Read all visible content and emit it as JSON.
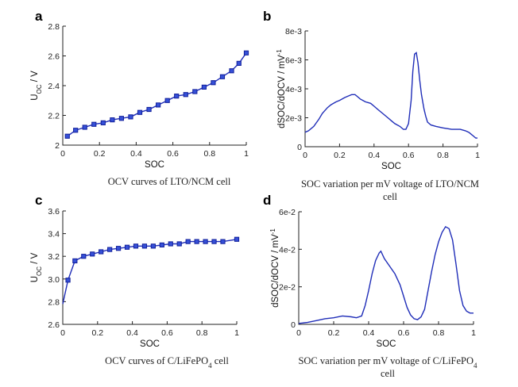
{
  "chart_data": [
    {
      "id": "a",
      "panel_label": "a",
      "type": "line",
      "markers": true,
      "caption_lines": [
        "OCV curves of LTO/NCM cell"
      ],
      "xlabel": "SOC",
      "ylabel": "U",
      "ylabel_sub": "OC",
      "ylabel_rest": " / V",
      "xlim": [
        0,
        1
      ],
      "ylim": [
        2.0,
        2.8
      ],
      "xticks": [
        0,
        0.2,
        0.4,
        0.6,
        0.8,
        1
      ],
      "xtick_labels": [
        "0",
        "0.2",
        "0.4",
        "0.6",
        "0.8",
        "1"
      ],
      "yticks": [
        2.0,
        2.2,
        2.4,
        2.6,
        2.8
      ],
      "ytick_labels": [
        "2",
        "2.2",
        "2.4",
        "2.6",
        "2.8"
      ],
      "series": [
        {
          "name": "OCV LTO/NCM",
          "x": [
            0.025,
            0.07,
            0.12,
            0.17,
            0.22,
            0.27,
            0.32,
            0.37,
            0.42,
            0.47,
            0.52,
            0.57,
            0.62,
            0.67,
            0.72,
            0.77,
            0.82,
            0.87,
            0.92,
            0.96,
            1.0
          ],
          "y": [
            2.06,
            2.1,
            2.12,
            2.14,
            2.15,
            2.17,
            2.18,
            2.19,
            2.22,
            2.24,
            2.27,
            2.3,
            2.33,
            2.34,
            2.36,
            2.39,
            2.42,
            2.46,
            2.5,
            2.55,
            2.62
          ]
        }
      ]
    },
    {
      "id": "b",
      "panel_label": "b",
      "type": "line",
      "markers": false,
      "caption_lines": [
        "SOC variation per mV voltage of LTO/NCM",
        "cell"
      ],
      "xlabel": "SOC",
      "ylabel": "dSOC/dOCV  /  mV",
      "ylabel_sup": "-1",
      "xlim": [
        0,
        1
      ],
      "ylim": [
        0,
        0.008
      ],
      "xticks": [
        0,
        0.2,
        0.4,
        0.6,
        0.8,
        1
      ],
      "xtick_labels": [
        "0",
        "0.2",
        "0.4",
        "0.6",
        "0.8",
        "1"
      ],
      "yticks": [
        0,
        0.002,
        0.004,
        0.006,
        0.008
      ],
      "ytick_labels": [
        "0",
        "2e-3",
        "4e-3",
        "6e-3",
        "8e-3"
      ],
      "series": [
        {
          "name": "dSOC/dOCV LTO/NCM",
          "x": [
            0,
            0.02,
            0.05,
            0.08,
            0.1,
            0.13,
            0.15,
            0.18,
            0.2,
            0.23,
            0.25,
            0.27,
            0.29,
            0.3,
            0.32,
            0.35,
            0.38,
            0.4,
            0.42,
            0.45,
            0.48,
            0.5,
            0.52,
            0.55,
            0.57,
            0.585,
            0.6,
            0.615,
            0.625,
            0.635,
            0.645,
            0.655,
            0.665,
            0.675,
            0.69,
            0.7,
            0.71,
            0.73,
            0.76,
            0.8,
            0.85,
            0.9,
            0.93,
            0.95,
            0.97,
            0.99,
            1.0
          ],
          "y": [
            0.001,
            0.0011,
            0.0014,
            0.0019,
            0.0023,
            0.0027,
            0.0029,
            0.0031,
            0.0032,
            0.0034,
            0.0035,
            0.0036,
            0.0036,
            0.0035,
            0.0033,
            0.0031,
            0.003,
            0.0028,
            0.0026,
            0.0023,
            0.002,
            0.0018,
            0.0016,
            0.0014,
            0.0012,
            0.0012,
            0.0016,
            0.0032,
            0.0052,
            0.0064,
            0.0065,
            0.0058,
            0.0046,
            0.0036,
            0.0026,
            0.0021,
            0.0017,
            0.0015,
            0.0014,
            0.0013,
            0.0012,
            0.0012,
            0.0011,
            0.001,
            0.0008,
            0.0006,
            0.0006
          ]
        }
      ]
    },
    {
      "id": "c",
      "panel_label": "c",
      "type": "line",
      "markers": true,
      "caption_lines": [
        "OCV curves of C/LiFePO4 cell"
      ],
      "caption_parts": [
        "OCV curves of C/LiFePO",
        "4",
        " cell"
      ],
      "xlabel": "SOC",
      "ylabel": "U",
      "ylabel_sub": "OC",
      "ylabel_rest": " / V",
      "xlim": [
        0,
        1
      ],
      "ylim": [
        2.6,
        3.6
      ],
      "xticks": [
        0,
        0.2,
        0.4,
        0.6,
        0.8,
        1
      ],
      "xtick_labels": [
        "0",
        "0.2",
        "0.4",
        "0.6",
        "0.8",
        "1"
      ],
      "yticks": [
        2.6,
        2.8,
        3.0,
        3.2,
        3.4,
        3.6
      ],
      "ytick_labels": [
        "2.6",
        "2.8",
        "3.0",
        "3.2",
        "3.4",
        "3.6"
      ],
      "series": [
        {
          "name": "OCV C/LiFePO4",
          "x": [
            0.0,
            0.03,
            0.07,
            0.12,
            0.17,
            0.22,
            0.27,
            0.32,
            0.37,
            0.42,
            0.47,
            0.52,
            0.57,
            0.62,
            0.67,
            0.72,
            0.77,
            0.82,
            0.87,
            0.92,
            1.0
          ],
          "y": [
            2.78,
            2.99,
            3.16,
            3.2,
            3.22,
            3.24,
            3.26,
            3.27,
            3.28,
            3.29,
            3.29,
            3.29,
            3.3,
            3.31,
            3.31,
            3.33,
            3.33,
            3.33,
            3.33,
            3.33,
            3.35
          ],
          "marker_indices": [
            1,
            2,
            3,
            4,
            5,
            6,
            7,
            8,
            9,
            10,
            11,
            12,
            13,
            14,
            15,
            16,
            17,
            18,
            19,
            20
          ]
        }
      ]
    },
    {
      "id": "d",
      "panel_label": "d",
      "type": "line",
      "markers": false,
      "caption_lines": [
        "SOC variation per mV voltage of C/LiFePO4",
        "cell"
      ],
      "caption_parts": [
        "SOC variation per mV voltage of C/LiFePO",
        "4"
      ],
      "xlabel": "SOC",
      "ylabel": "dSOC/dOCV  /  mV",
      "ylabel_sup": "-1",
      "xlim": [
        0,
        1
      ],
      "ylim": [
        0,
        0.06
      ],
      "xticks": [
        0,
        0.2,
        0.4,
        0.6,
        0.8,
        1
      ],
      "xtick_labels": [
        "0",
        "0.2",
        "0.4",
        "0.6",
        "0.8",
        "1"
      ],
      "yticks": [
        0,
        0.02,
        0.04,
        0.06
      ],
      "ytick_labels": [
        "0",
        "2e-2",
        "4e-2",
        "6e-2"
      ],
      "series": [
        {
          "name": "dSOC/dOCV C/LiFePO4",
          "x": [
            0,
            0.05,
            0.1,
            0.15,
            0.2,
            0.25,
            0.3,
            0.33,
            0.36,
            0.38,
            0.4,
            0.42,
            0.44,
            0.46,
            0.47,
            0.49,
            0.52,
            0.55,
            0.58,
            0.6,
            0.62,
            0.64,
            0.66,
            0.68,
            0.7,
            0.72,
            0.74,
            0.76,
            0.78,
            0.8,
            0.82,
            0.84,
            0.86,
            0.88,
            0.9,
            0.92,
            0.94,
            0.96,
            0.98,
            1.0
          ],
          "y": [
            0.0005,
            0.001,
            0.002,
            0.003,
            0.0035,
            0.0045,
            0.004,
            0.0035,
            0.0045,
            0.01,
            0.018,
            0.027,
            0.034,
            0.038,
            0.039,
            0.035,
            0.031,
            0.027,
            0.021,
            0.015,
            0.009,
            0.005,
            0.003,
            0.0025,
            0.004,
            0.008,
            0.018,
            0.028,
            0.037,
            0.044,
            0.049,
            0.052,
            0.051,
            0.045,
            0.032,
            0.018,
            0.01,
            0.007,
            0.006,
            0.006
          ]
        }
      ]
    }
  ]
}
